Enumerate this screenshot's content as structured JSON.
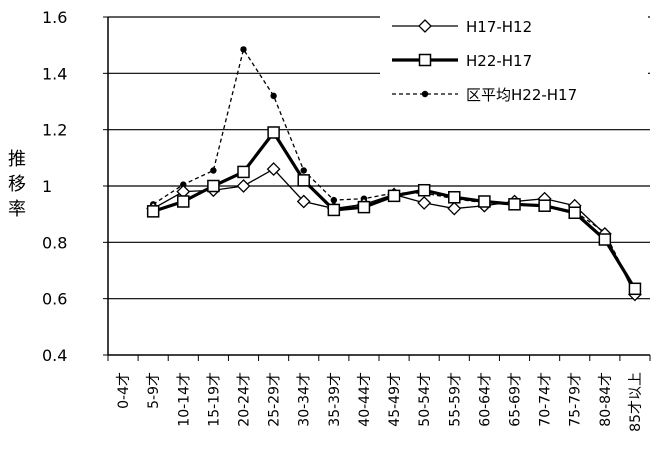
{
  "chart_data": {
    "type": "line",
    "ylabel_chars": [
      "推",
      "移",
      "率"
    ],
    "ylim": [
      0.4,
      1.6
    ],
    "yticks": [
      "0.4",
      "0.6",
      "0.8",
      "1",
      "1.2",
      "1.4",
      "1.6"
    ],
    "ytick_values": [
      0.4,
      0.6,
      0.8,
      1.0,
      1.2,
      1.4,
      1.6
    ],
    "grid": true,
    "legend_position": "top-right",
    "categories": [
      "0-4才",
      "5-9才",
      "10-14才",
      "15-19才",
      "20-24才",
      "25-29才",
      "30-34才",
      "35-39才",
      "40-44才",
      "45-49才",
      "50-54才",
      "55-59才",
      "60-64才",
      "65-69才",
      "70-74才",
      "75-79才",
      "80-84才",
      "85才以上"
    ],
    "series": [
      {
        "name": "H17-H12",
        "marker": "diamond",
        "line_style": "solid-thin",
        "values": [
          null,
          0.92,
          0.98,
          0.985,
          1.0,
          1.06,
          0.945,
          0.92,
          0.935,
          0.97,
          0.94,
          0.92,
          0.93,
          0.945,
          0.955,
          0.93,
          0.83,
          0.615
        ]
      },
      {
        "name": "H22-H17",
        "marker": "square",
        "line_style": "solid-thick",
        "values": [
          null,
          0.91,
          0.945,
          1.0,
          1.05,
          1.19,
          1.02,
          0.915,
          0.925,
          0.965,
          0.985,
          0.96,
          0.945,
          0.935,
          0.93,
          0.905,
          0.81,
          0.635
        ]
      },
      {
        "name": "区平均H22-H17",
        "marker": "dot",
        "line_style": "dashed",
        "values": [
          null,
          0.935,
          1.005,
          1.055,
          1.485,
          1.32,
          1.055,
          0.95,
          0.955,
          0.975,
          0.975,
          0.955,
          0.94,
          0.94,
          0.925,
          0.91,
          0.835,
          0.62
        ]
      }
    ]
  },
  "colors": {
    "line": "#000000",
    "grid": "#000000",
    "marker_fill": "#ffffff",
    "background": "#ffffff"
  }
}
